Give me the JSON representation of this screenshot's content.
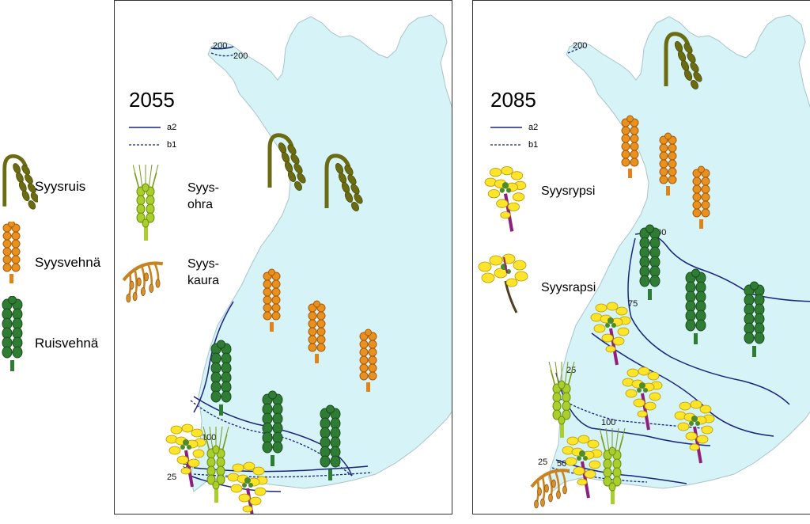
{
  "legend": {
    "items": [
      {
        "label": "Syysruis",
        "icon": "rye-icon"
      },
      {
        "label": "Syysvehnä",
        "icon": "wheat-icon"
      },
      {
        "label": "Ruisvehnä",
        "icon": "triticale-icon"
      }
    ]
  },
  "colors": {
    "land": "#d6f3f7",
    "rye": "#6b6b12",
    "wheat": "#e08418",
    "triticale": "#2e7d32",
    "barley": "#a9cf2c",
    "oat": "#c8821e",
    "rapeseed_flower": "#ffe52a",
    "isoline": "#1a237e"
  },
  "panels": [
    {
      "year": "2055",
      "key": {
        "a2": "a2",
        "b1": "b1"
      },
      "crop_legend": [
        {
          "label": "Syys-\nohra",
          "icon": "barley-icon"
        },
        {
          "label": "Syys-\nkaura",
          "icon": "oat-icon"
        }
      ],
      "contour_labels": [
        "200",
        "200",
        "100",
        "50",
        "25"
      ]
    },
    {
      "year": "2085",
      "key": {
        "a2": "a2",
        "b1": "b1"
      },
      "crop_legend": [
        {
          "label": "Syysrypsi",
          "icon": "turnip-rape-icon"
        },
        {
          "label": "Syysrapsi",
          "icon": "rapeseed-icon"
        }
      ],
      "contour_labels": [
        "200",
        "100",
        "75",
        "25",
        "100",
        "50",
        "25"
      ]
    }
  ]
}
